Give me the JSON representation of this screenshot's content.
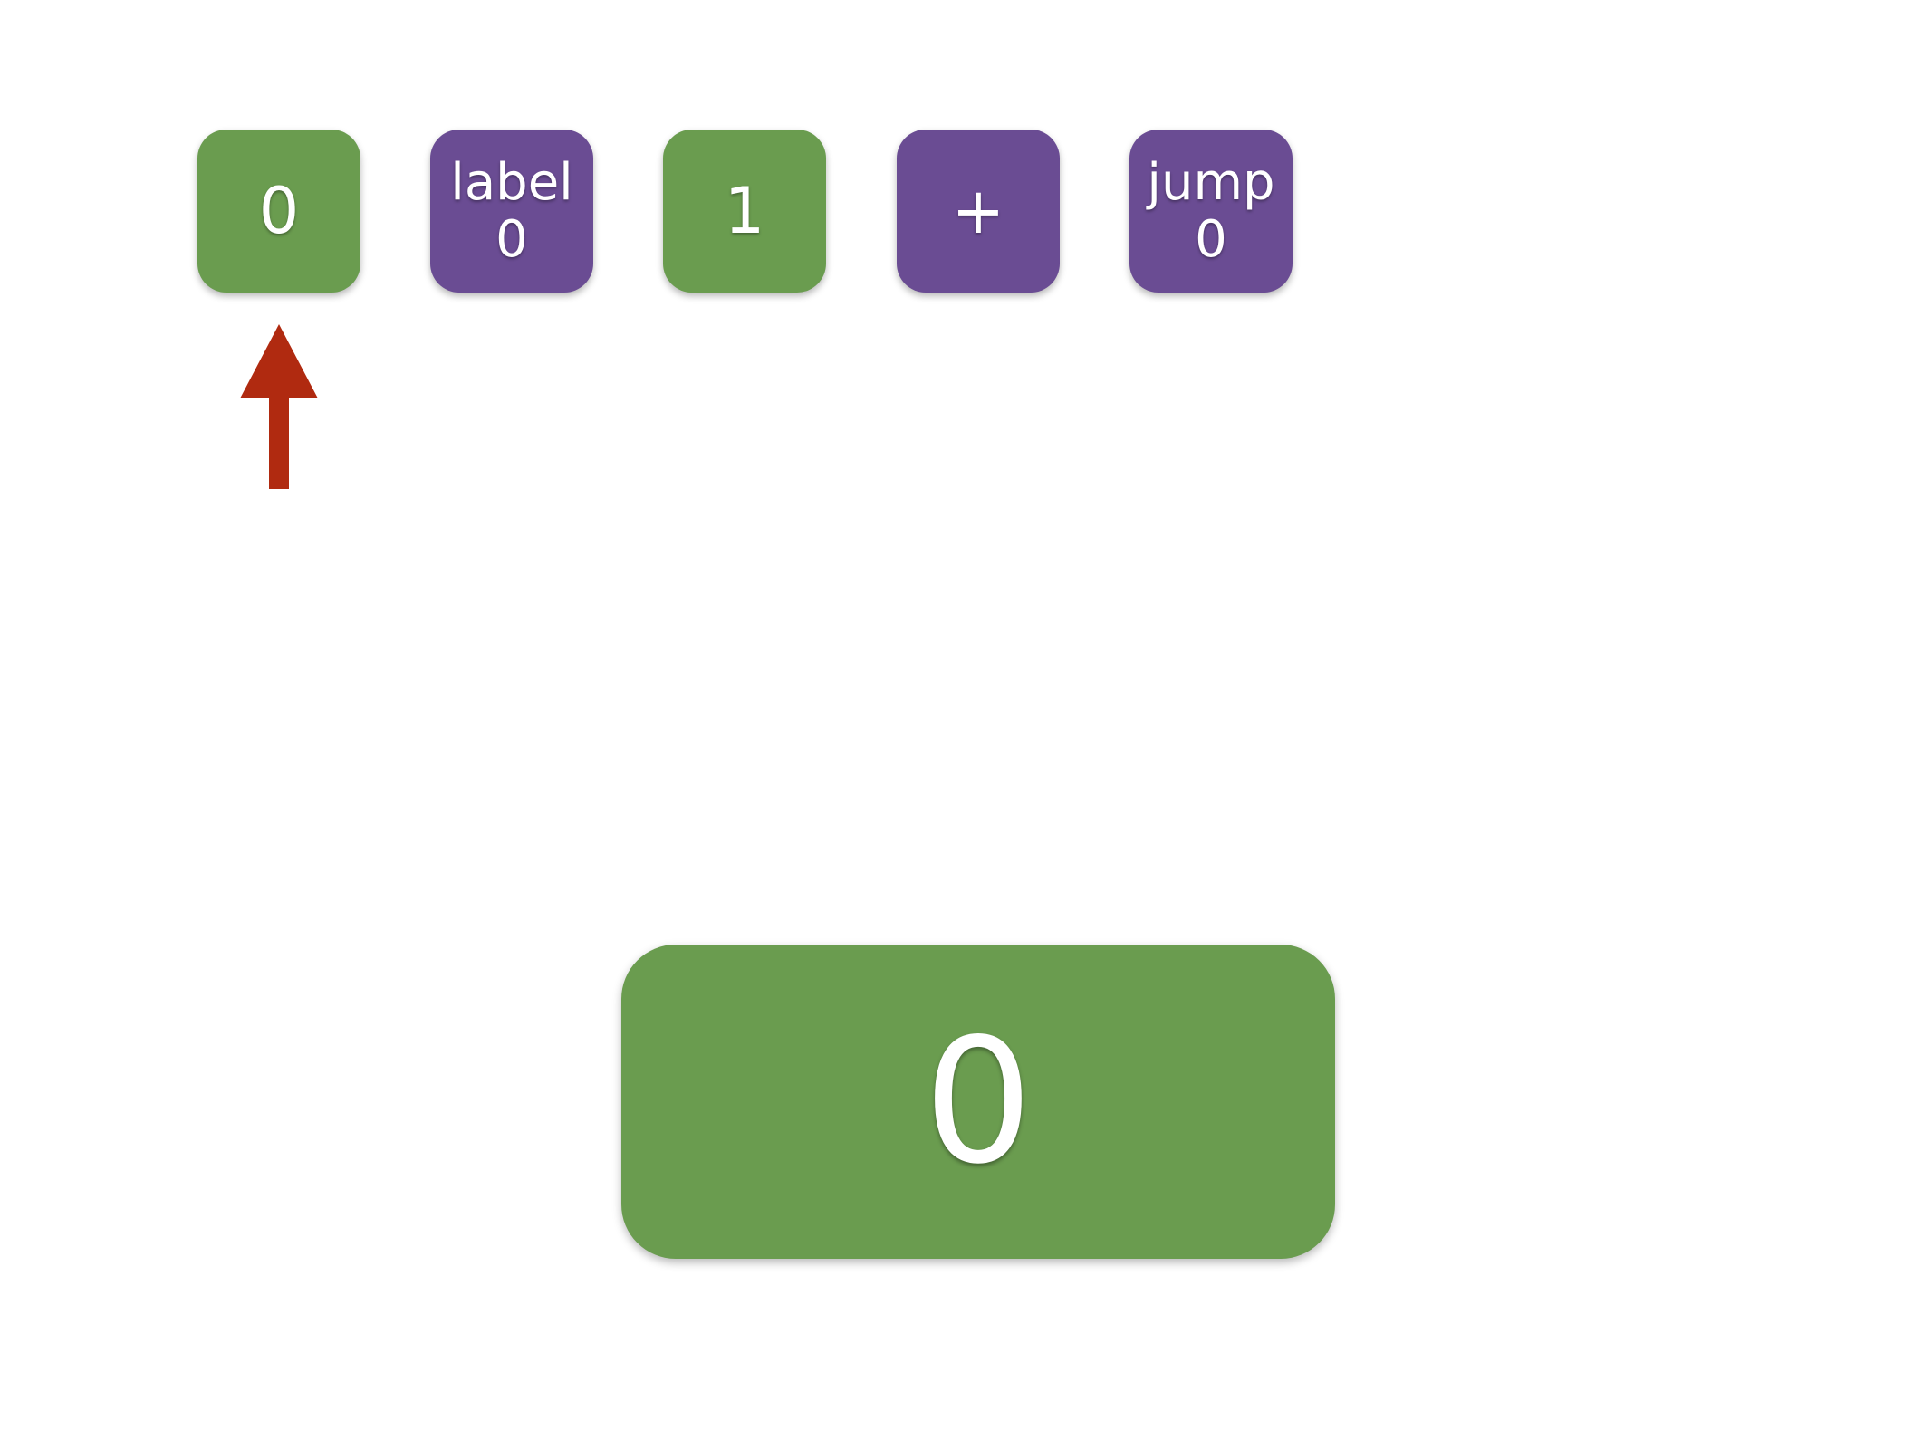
{
  "colors": {
    "value_tile": "#6a9c4f",
    "instruction_tile": "#6a4c93",
    "pointer_arrow": "#b02a10",
    "background": "#ffffff",
    "text": "#ffffff"
  },
  "program": {
    "tiles": [
      {
        "kind": "value",
        "lines": [
          "0"
        ]
      },
      {
        "kind": "instruction",
        "lines": [
          "label",
          "0"
        ]
      },
      {
        "kind": "value",
        "lines": [
          "1"
        ]
      },
      {
        "kind": "instruction",
        "lines": [
          "+"
        ]
      },
      {
        "kind": "instruction",
        "lines": [
          "jump",
          "0"
        ]
      }
    ]
  },
  "pointer": {
    "icon": "up-arrow-icon"
  },
  "stack": {
    "value": "0"
  }
}
